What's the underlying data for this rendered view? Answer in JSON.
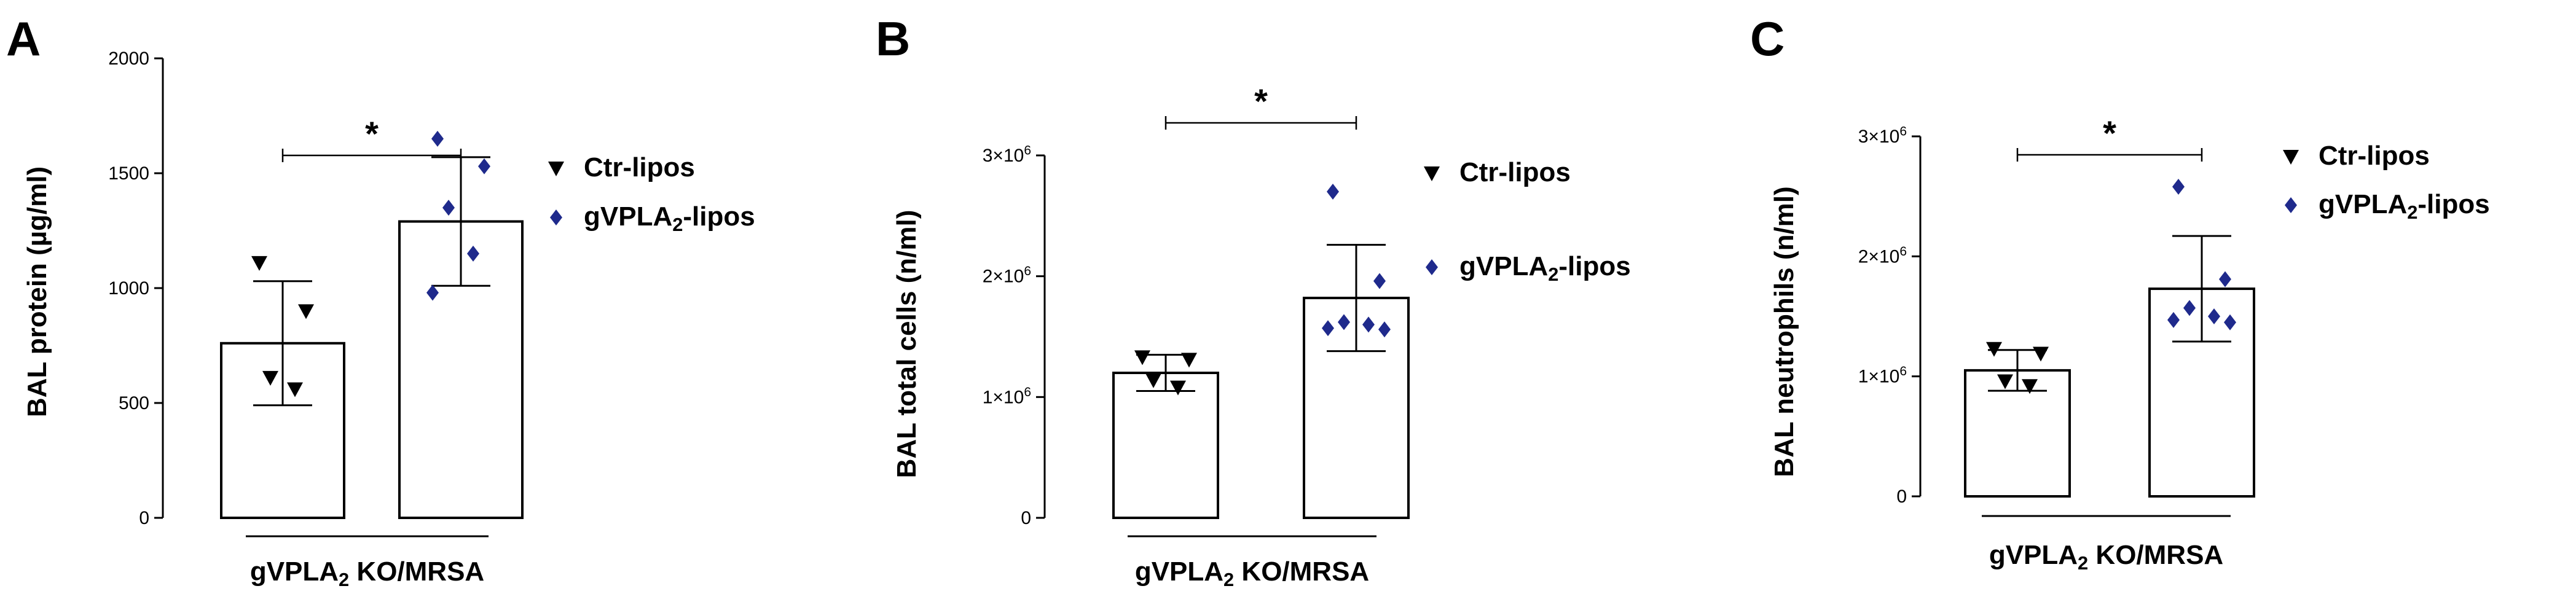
{
  "chart_data": [
    {
      "type": "bar",
      "panel": "A",
      "ylabel": "BAL protein (µg/ml)",
      "xlabel": "gVPLA₂ KO/MRSA",
      "ylim": [
        0,
        2000
      ],
      "yticks": [
        "0",
        "500",
        "1000",
        "1500",
        "2000"
      ],
      "grid": false,
      "legend_position": "right",
      "significance": "*",
      "series": [
        {
          "name": "Ctr-lipos",
          "marker": "triangle-down",
          "color": "#000000",
          "mean": 760,
          "sd": 270,
          "points": [
            1110,
            900,
            610,
            560
          ]
        },
        {
          "name": "gVPLA₂-lipos",
          "marker": "diamond",
          "color": "#1f2a8c",
          "mean": 1290,
          "sd": 280,
          "points": [
            1650,
            1530,
            1350,
            1150,
            980
          ]
        }
      ]
    },
    {
      "type": "bar",
      "panel": "B",
      "ylabel": "BAL total cells (n/ml)",
      "xlabel": "gVPLA₂ KO/MRSA",
      "ylim": [
        0,
        3000000
      ],
      "yticks": [
        "0",
        "1×10⁶",
        "2×10⁶",
        "3×10⁶"
      ],
      "grid": false,
      "legend_position": "right",
      "significance": "*",
      "series": [
        {
          "name": "Ctr-lipos",
          "marker": "triangle-down",
          "color": "#000000",
          "mean": 1200000,
          "sd": 150000,
          "points": [
            1330000,
            1310000,
            1140000,
            1080000
          ]
        },
        {
          "name": "gVPLA₂-lipos",
          "marker": "diamond",
          "color": "#1f2a8c",
          "mean": 1820000,
          "sd": 440000,
          "points": [
            2700000,
            1960000,
            1620000,
            1600000,
            1570000,
            1560000
          ]
        }
      ]
    },
    {
      "type": "bar",
      "panel": "C",
      "ylabel": "BAL neutrophils (n/ml)",
      "xlabel": "gVPLA₂ KO/MRSA",
      "ylim": [
        0,
        3000000
      ],
      "yticks": [
        "0",
        "1×10⁶",
        "2×10⁶",
        "3×10⁶"
      ],
      "grid": false,
      "legend_position": "right",
      "significance": "*",
      "series": [
        {
          "name": "Ctr-lipos",
          "marker": "triangle-down",
          "color": "#000000",
          "mean": 1050000,
          "sd": 170000,
          "points": [
            1230000,
            1190000,
            960000,
            920000
          ]
        },
        {
          "name": "gVPLA₂-lipos",
          "marker": "diamond",
          "color": "#1f2a8c",
          "mean": 1730000,
          "sd": 440000,
          "points": [
            2580000,
            1810000,
            1570000,
            1500000,
            1470000,
            1450000
          ]
        }
      ]
    }
  ]
}
